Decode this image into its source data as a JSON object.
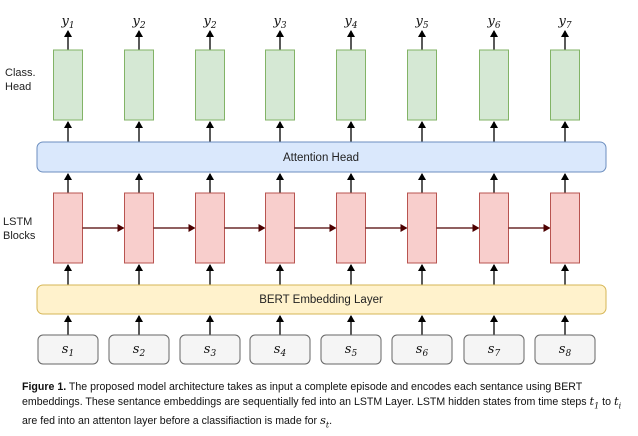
{
  "diagram": {
    "outputs": [
      {
        "base": "y",
        "sub": "1"
      },
      {
        "base": "y",
        "sub": "2"
      },
      {
        "base": "y",
        "sub": "2"
      },
      {
        "base": "y",
        "sub": "3"
      },
      {
        "base": "y",
        "sub": "4"
      },
      {
        "base": "y",
        "sub": "5"
      },
      {
        "base": "y",
        "sub": "6"
      },
      {
        "base": "y",
        "sub": "7"
      }
    ],
    "inputs": [
      {
        "base": "s",
        "sub": "1"
      },
      {
        "base": "s",
        "sub": "2"
      },
      {
        "base": "s",
        "sub": "3"
      },
      {
        "base": "s",
        "sub": "4"
      },
      {
        "base": "s",
        "sub": "5"
      },
      {
        "base": "s",
        "sub": "6"
      },
      {
        "base": "s",
        "sub": "7"
      },
      {
        "base": "s",
        "sub": "8"
      }
    ],
    "side_labels": {
      "class_head": [
        "Class.",
        "Head"
      ],
      "lstm": [
        "LSTM",
        "Blocks"
      ]
    },
    "attention_label": "Attention Head",
    "bert_label": "BERT Embedding Layer",
    "colors": {
      "class_head_fill": "#d5e8d4",
      "class_head_stroke": "#82b366",
      "attention_fill": "#dae8fc",
      "attention_stroke": "#6c8ebf",
      "lstm_fill": "#f8cecc",
      "lstm_stroke": "#b85450",
      "bert_fill": "#fff2cc",
      "bert_stroke": "#d6b656",
      "input_fill": "#f5f5f5",
      "input_stroke": "#666666",
      "lstm_link": "#4d0000"
    }
  },
  "caption": {
    "figure_label": "Figure 1.",
    "text_1": " The proposed model architecture takes as input a complete episode and encodes each sentance using BERT embeddings.  These sentance embeddings are sequentially fed into an LSTM Layer.  LSTM hidden states from time steps ",
    "t1": {
      "base": "t",
      "sub": "1"
    },
    "text_2": " to ",
    "ti": {
      "base": "t",
      "sub": "i"
    },
    "text_3": " are fed into an attenton layer before a classifiaction is made for ",
    "st": {
      "base": "s",
      "sub": "t"
    },
    "text_4": "."
  }
}
